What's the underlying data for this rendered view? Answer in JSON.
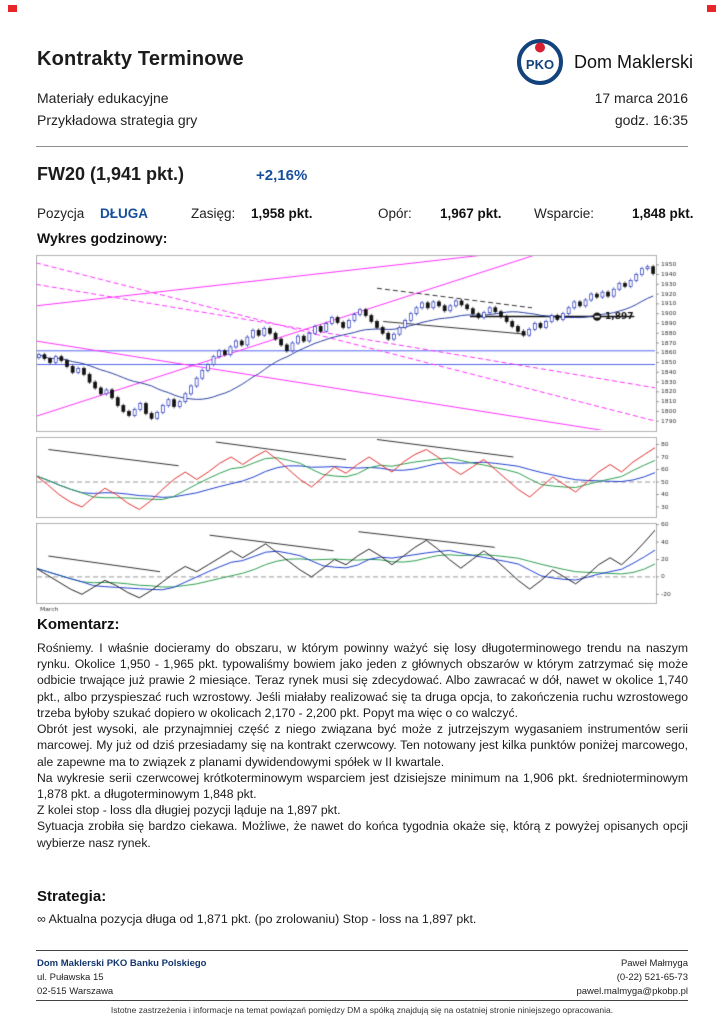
{
  "header": {
    "title": "Kontrakty Terminowe",
    "subtitle1": "Materiały edukacyjne",
    "subtitle2": "Przykładowa strategia gry",
    "brand": "Dom Maklerski",
    "logo_text": "PKO",
    "date": "17 marca 2016",
    "time": "godz. 16:35"
  },
  "instrument": {
    "name": "FW20 (1,941 pkt.)",
    "change": "+2,16%",
    "position_label": "Pozycja",
    "position_value": "DŁUGA",
    "range_label": "Zasięg:",
    "range_value": "1,958 pkt.",
    "resistance_label": "Opór:",
    "resistance_value": "1,967 pkt.",
    "support_label": "Wsparcie:",
    "support_value": "1,848 pkt."
  },
  "chart_data": {
    "type": "candlestick",
    "title": "Wykres godzinowy:",
    "xlabel_left": "March",
    "price_panel": {
      "ylim": [
        1780,
        1960
      ],
      "yticks": [
        1790,
        1800,
        1810,
        1820,
        1830,
        1840,
        1850,
        1860,
        1870,
        1880,
        1890,
        1900,
        1910,
        1920,
        1930,
        1940,
        1950
      ],
      "wick_extra": 2,
      "up_color": "#2233bb",
      "down_color": "#111111",
      "ma_window": 21,
      "ma_color": "#2a3f9f",
      "closes": [
        1858,
        1854,
        1850,
        1856,
        1852,
        1846,
        1840,
        1844,
        1838,
        1830,
        1824,
        1818,
        1822,
        1814,
        1806,
        1800,
        1796,
        1802,
        1808,
        1798,
        1793,
        1799,
        1806,
        1812,
        1805,
        1810,
        1818,
        1826,
        1834,
        1842,
        1848,
        1856,
        1862,
        1858,
        1866,
        1872,
        1868,
        1876,
        1883,
        1878,
        1885,
        1880,
        1874,
        1868,
        1862,
        1870,
        1877,
        1872,
        1880,
        1887,
        1882,
        1890,
        1896,
        1891,
        1886,
        1893,
        1899,
        1904,
        1898,
        1892,
        1886,
        1880,
        1874,
        1879,
        1886,
        1893,
        1900,
        1906,
        1911,
        1906,
        1912,
        1908,
        1903,
        1908,
        1913,
        1909,
        1905,
        1900,
        1896,
        1901,
        1906,
        1902,
        1897,
        1892,
        1887,
        1882,
        1878,
        1884,
        1890,
        1886,
        1892,
        1898,
        1894,
        1900,
        1906,
        1912,
        1908,
        1914,
        1920,
        1917,
        1922,
        1918,
        1925,
        1931,
        1928,
        1934,
        1940,
        1946,
        1948,
        1941
      ],
      "hlines": [
        {
          "y": 1848,
          "color": "#5566ee"
        },
        {
          "y": 1862,
          "color": "#5566ee"
        }
      ],
      "trendlines": [
        {
          "x1": 0,
          "y1": 1908,
          "x2": 1,
          "y2": 1980,
          "color": "#ff33ff",
          "dash": false,
          "width": 1
        },
        {
          "x1": 0,
          "y1": 1795,
          "x2": 1,
          "y2": 2000,
          "color": "#ff33ff",
          "dash": false,
          "width": 1
        },
        {
          "x1": 0,
          "y1": 1930,
          "x2": 1,
          "y2": 1824,
          "color": "#ff33ff",
          "dash": true,
          "width": 1
        },
        {
          "x1": 0,
          "y1": 1952,
          "x2": 1,
          "y2": 1790,
          "color": "#ff33ff",
          "dash": true,
          "width": 1
        },
        {
          "x1": 0,
          "y1": 1872,
          "x2": 1,
          "y2": 1772,
          "color": "#ff33ff",
          "dash": false,
          "width": 1
        },
        {
          "x1": 0.55,
          "y1": 1926,
          "x2": 0.8,
          "y2": 1906,
          "color": "#333333",
          "dash": true,
          "width": 1
        },
        {
          "x1": 0.56,
          "y1": 1892,
          "x2": 0.79,
          "y2": 1879,
          "color": "#333333",
          "dash": false,
          "width": 1
        },
        {
          "x1": 0.7,
          "y1": 1897,
          "x2": 0.965,
          "y2": 1897,
          "color": "#111111",
          "dash": false,
          "width": 1.5
        }
      ],
      "stop_marker": {
        "x": 0.905,
        "y": 1897,
        "label": "1,897"
      }
    },
    "indicator1": {
      "ylim": [
        22,
        86
      ],
      "yticks": [
        30,
        40,
        50,
        60,
        70,
        80
      ],
      "midline": 50,
      "ma_windows": [
        5,
        11
      ],
      "colors": {
        "fast": "#e03030",
        "medium": "#2e9e4f",
        "slow": "#2040d0"
      },
      "series": [
        55,
        48,
        40,
        34,
        30,
        38,
        45,
        40,
        33,
        28,
        35,
        44,
        52,
        58,
        52,
        58,
        65,
        70,
        64,
        70,
        75,
        68,
        60,
        52,
        46,
        54,
        62,
        57,
        64,
        70,
        64,
        58,
        66,
        72,
        76,
        70,
        62,
        56,
        62,
        68,
        60,
        52,
        44,
        38,
        46,
        54,
        48,
        42,
        50,
        58,
        64,
        58,
        66,
        72,
        78
      ],
      "segments": [
        {
          "x1": 0.02,
          "y1": 76,
          "x2": 0.23,
          "y2": 63,
          "dash": false
        },
        {
          "x1": 0.29,
          "y1": 82,
          "x2": 0.5,
          "y2": 68,
          "dash": false
        },
        {
          "x1": 0.55,
          "y1": 84,
          "x2": 0.77,
          "y2": 70,
          "dash": false
        }
      ]
    },
    "indicator2": {
      "ylim": [
        -30,
        62
      ],
      "yticks": [
        -20,
        0,
        20,
        40,
        60
      ],
      "midline": 0,
      "ma_windows": [
        5,
        11
      ],
      "colors": {
        "fast": "#222222",
        "medium": "#2040d0",
        "slow": "#2e9e4f"
      },
      "series": [
        10,
        2,
        -6,
        -14,
        -20,
        -12,
        -4,
        -10,
        -18,
        -24,
        -16,
        -6,
        4,
        12,
        6,
        14,
        22,
        30,
        22,
        30,
        38,
        28,
        18,
        8,
        0,
        10,
        20,
        14,
        24,
        32,
        24,
        14,
        24,
        34,
        42,
        32,
        20,
        10,
        20,
        30,
        20,
        8,
        -4,
        -14,
        -4,
        8,
        0,
        -8,
        2,
        14,
        22,
        14,
        26,
        40,
        55
      ],
      "segments": [
        {
          "x1": 0.02,
          "y1": 24,
          "x2": 0.2,
          "y2": 6,
          "dash": false
        },
        {
          "x1": 0.28,
          "y1": 48,
          "x2": 0.48,
          "y2": 30,
          "dash": false
        },
        {
          "x1": 0.52,
          "y1": 52,
          "x2": 0.74,
          "y2": 34,
          "dash": false
        }
      ]
    }
  },
  "commentary": {
    "heading": "Komentarz:",
    "paragraphs": [
      "Rośniemy. I właśnie docieramy do obszaru, w którym powinny ważyć się losy długoterminowego trendu na naszym rynku. Okolice 1,950 - 1,965 pkt. typowaliśmy bowiem jako jeden z głównych obszarów w którym zatrzymać się może odbicie trwające już prawie 2 miesiące. Teraz rynek musi się zdecydować. Albo zawracać w dół, nawet w okolice 1,740 pkt., albo przyspieszać ruch wzrostowy. Jeśli miałaby realizować się ta druga opcja, to zakończenia ruchu wzrostowego trzeba byłoby szukać dopiero w okolicach 2,170 - 2,200 pkt. Popyt ma więc o co walczyć.",
      "Obrót jest wysoki, ale przynajmniej część z niego związana być może z jutrzejszym wygasaniem instrumentów serii marcowej. My już od dziś przesiadamy się na kontrakt czerwcowy. Ten notowany jest kilka punktów poniżej marcowego, ale zapewne ma to związek z planami dywidendowymi spółek w II kwartale.",
      "Na wykresie serii czerwcowej krótkoterminowym wsparciem jest dzisiejsze minimum na 1,906 pkt. średnioterminowym 1,878 pkt. a długoterminowym 1,848 pkt.",
      "Z kolei stop - loss dla długiej pozycji ląduje na 1,897 pkt.",
      "Sytuacja zrobiła się bardzo ciekawa. Możliwe, że nawet do końca tygodnia okaże się, którą z powyżej opisanych opcji wybierze nasz rynek."
    ]
  },
  "strategy": {
    "heading": "Strategia:",
    "bullet": "∞",
    "text": "Aktualna pozycja długa od 1,871 pkt. (po zrolowaniu) Stop - loss na 1,897 pkt."
  },
  "footer": {
    "company": "Dom Maklerski PKO Banku Polskiego",
    "address1": "ul. Puławska 15",
    "address2": "02-515 Warszawa",
    "contact_name": "Paweł Małmyga",
    "phone": "(0-22) 521-65-73",
    "email": "pawel.malmyga@pkobp.pl",
    "disclaimer": "Istotne zastrzeżenia i informacje na temat powiązań pomiędzy DM a spółką znajdują się na ostatniej stronie niniejszego opracowania."
  },
  "colors": {
    "accent_blue": "#164f9e",
    "magenta": "#ff33ff",
    "mark_red": "#e8262a"
  }
}
